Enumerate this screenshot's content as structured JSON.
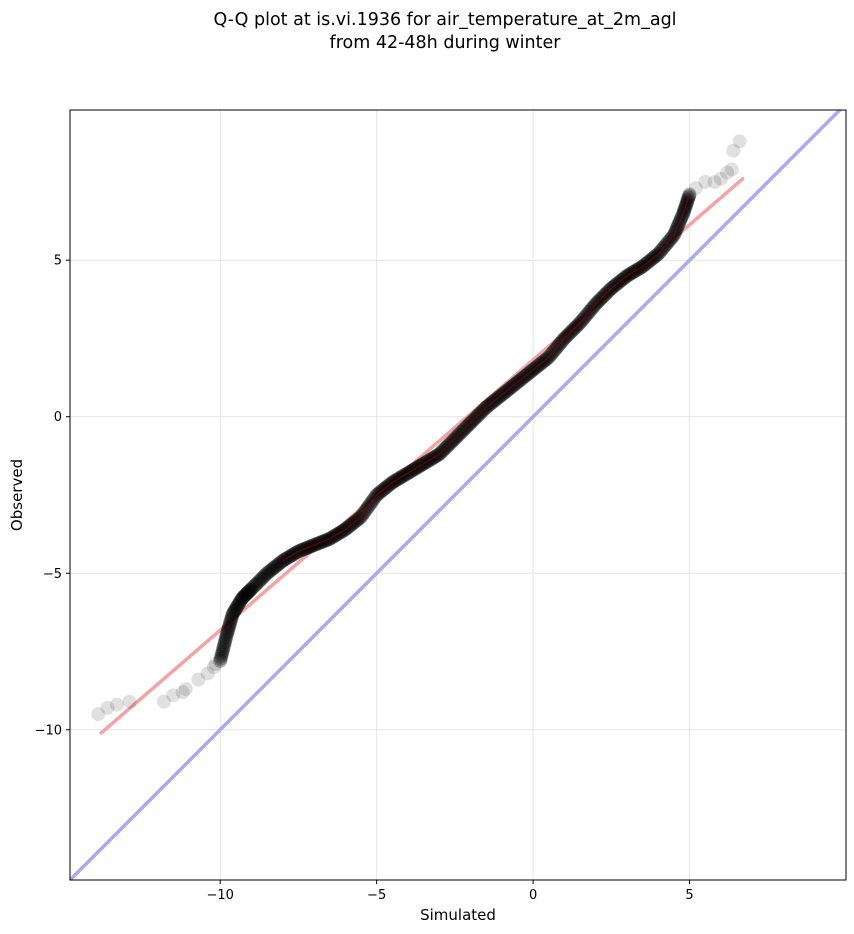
{
  "chart_data": {
    "type": "scatter",
    "title_line1": "Q-Q plot at is.vi.1936 for air_temperature_at_2m_agl",
    "title_line2": "from 42-48h during winter",
    "xlabel": "Simulated",
    "ylabel": "Observed",
    "xlim": [
      -14.8,
      10.0
    ],
    "ylim": [
      -14.8,
      9.8
    ],
    "xticks": [
      -10,
      -5,
      0,
      5
    ],
    "yticks": [
      -10,
      -5,
      0,
      5
    ],
    "xtick_labels": [
      "−10",
      "−5",
      "0",
      "5"
    ],
    "ytick_labels": [
      "−10",
      "−5",
      "0",
      "5"
    ],
    "grid": true,
    "colors": {
      "points": "#000000",
      "fit_line": "#f4a3a3",
      "identity_line": "#a9aaf4",
      "inner_trend": "#8b0000"
    },
    "fit_line": {
      "x": [
        -13.8,
        6.7
      ],
      "y": [
        -10.1,
        7.6
      ]
    },
    "identity_line": {
      "x": [
        -14.8,
        10.0
      ],
      "y": [
        -14.8,
        10.0
      ]
    },
    "tail_points": [
      [
        -13.9,
        -9.5
      ],
      [
        -13.6,
        -9.3
      ],
      [
        -13.3,
        -9.2
      ],
      [
        -12.9,
        -9.1
      ],
      [
        -11.8,
        -9.1
      ],
      [
        -11.5,
        -8.9
      ],
      [
        -11.2,
        -8.8
      ],
      [
        -11.1,
        -8.7
      ],
      [
        -10.7,
        -8.4
      ],
      [
        -10.4,
        -8.2
      ],
      [
        -10.2,
        -8.0
      ],
      [
        -10.15,
        -7.9
      ],
      [
        5.2,
        7.3
      ],
      [
        5.5,
        7.5
      ],
      [
        5.8,
        7.5
      ],
      [
        6.0,
        7.6
      ],
      [
        6.2,
        7.8
      ],
      [
        6.35,
        7.9
      ],
      [
        6.4,
        8.5
      ],
      [
        6.6,
        8.8
      ]
    ],
    "quantile_curve": [
      [
        -10.0,
        -7.8
      ],
      [
        -9.8,
        -7.0
      ],
      [
        -9.6,
        -6.3
      ],
      [
        -9.3,
        -5.8
      ],
      [
        -9.0,
        -5.5
      ],
      [
        -8.5,
        -5.0
      ],
      [
        -8.0,
        -4.6
      ],
      [
        -7.5,
        -4.3
      ],
      [
        -7.0,
        -4.1
      ],
      [
        -6.5,
        -3.9
      ],
      [
        -6.0,
        -3.6
      ],
      [
        -5.5,
        -3.2
      ],
      [
        -5.0,
        -2.5
      ],
      [
        -4.5,
        -2.1
      ],
      [
        -4.0,
        -1.8
      ],
      [
        -3.5,
        -1.5
      ],
      [
        -3.0,
        -1.2
      ],
      [
        -2.5,
        -0.7
      ],
      [
        -2.0,
        -0.2
      ],
      [
        -1.5,
        0.3
      ],
      [
        -1.0,
        0.7
      ],
      [
        -0.5,
        1.1
      ],
      [
        0.0,
        1.5
      ],
      [
        0.5,
        1.9
      ],
      [
        1.0,
        2.5
      ],
      [
        1.5,
        3.0
      ],
      [
        2.0,
        3.6
      ],
      [
        2.5,
        4.1
      ],
      [
        3.0,
        4.5
      ],
      [
        3.5,
        4.8
      ],
      [
        4.0,
        5.2
      ],
      [
        4.5,
        5.8
      ],
      [
        4.8,
        6.5
      ],
      [
        5.0,
        7.1
      ]
    ]
  }
}
